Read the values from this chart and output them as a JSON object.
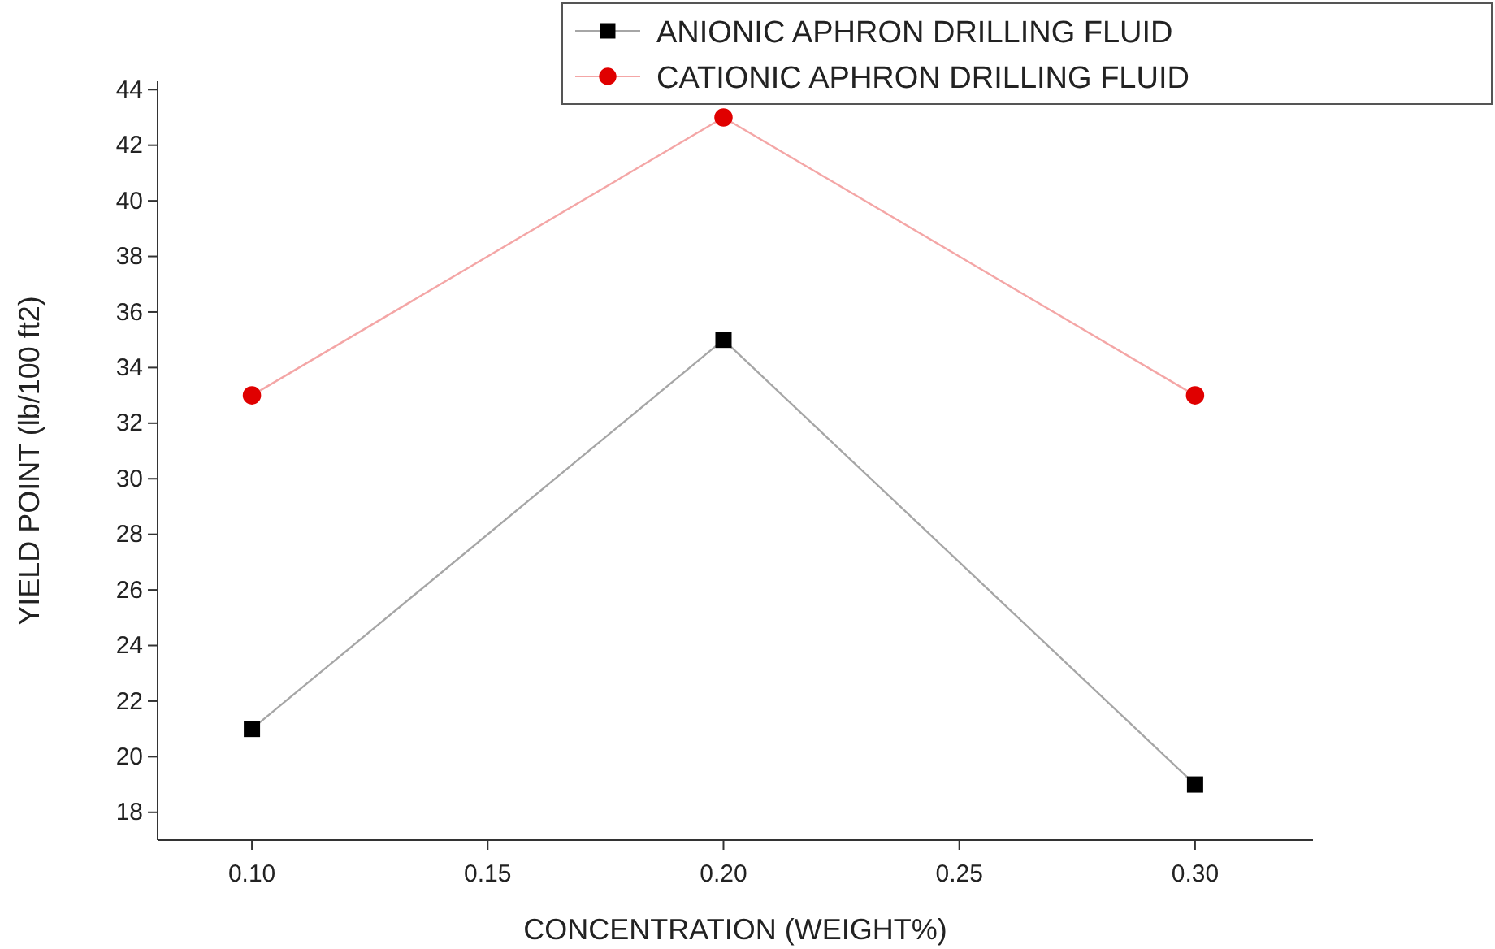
{
  "chart_data": {
    "type": "line",
    "xlabel": "CONCENTRATION (WEIGHT%)",
    "ylabel": "YIELD POINT (lb/100 ft2)",
    "x": [
      0.1,
      0.2,
      0.3
    ],
    "series": [
      {
        "name": "ANIONIC APHRON DRILLING FLUID",
        "color": "#000000",
        "marker": "square",
        "values": [
          21,
          35,
          19
        ]
      },
      {
        "name": "CATIONIC APHRON DRILLING FLUID",
        "color": "#e00000",
        "marker": "circle",
        "values": [
          33,
          43,
          33
        ]
      }
    ],
    "xlim": [
      0.08,
      0.325
    ],
    "xticks": [
      {
        "value": 0.1,
        "label": "0.10"
      },
      {
        "value": 0.15,
        "label": "0.15"
      },
      {
        "value": 0.2,
        "label": "0.20"
      },
      {
        "value": 0.25,
        "label": "0.25"
      },
      {
        "value": 0.3,
        "label": "0.30"
      }
    ],
    "ylim": [
      17,
      44.3
    ],
    "yticks": [
      18,
      20,
      22,
      24,
      26,
      28,
      30,
      32,
      34,
      36,
      38,
      40,
      42,
      44
    ],
    "grid": false,
    "legend": "top right",
    "line_style": "solid"
  }
}
